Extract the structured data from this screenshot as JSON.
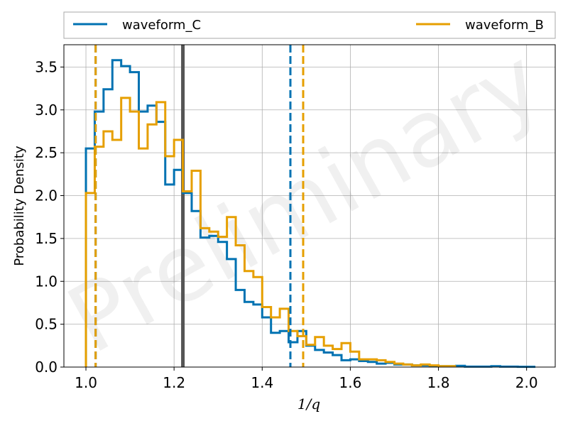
{
  "chart_data": {
    "type": "histogram",
    "xlabel": "1/q",
    "ylabel": "Probability Density",
    "xlim": [
      0.95,
      2.065
    ],
    "ylim": [
      0,
      3.76
    ],
    "xticks": [
      1.0,
      1.2,
      1.4,
      1.6,
      1.8,
      2.0
    ],
    "xtick_labels": [
      "1.0",
      "1.2",
      "1.4",
      "1.6",
      "1.8",
      "2.0"
    ],
    "yticks": [
      0.0,
      0.5,
      1.0,
      1.5,
      2.0,
      2.5,
      3.0,
      3.5
    ],
    "ytick_labels": [
      "0.0",
      "0.5",
      "1.0",
      "1.5",
      "2.0",
      "2.5",
      "3.0",
      "3.5"
    ],
    "grid": true,
    "legend_position": "top, above plot",
    "watermark": "Preliminary",
    "reference_line": {
      "x": 1.22,
      "color": "#555555"
    },
    "series": [
      {
        "name": "waveform_C",
        "color": "#0072b2",
        "bin_edges": [
          1.0,
          1.02,
          1.04,
          1.06,
          1.08,
          1.1,
          1.12,
          1.14,
          1.16,
          1.18,
          1.2,
          1.22,
          1.24,
          1.26,
          1.28,
          1.3,
          1.32,
          1.34,
          1.36,
          1.38,
          1.4,
          1.42,
          1.44,
          1.46,
          1.48,
          1.5,
          1.52,
          1.54,
          1.56,
          1.58,
          1.6,
          1.62,
          1.64,
          1.66,
          1.68,
          1.7,
          1.72,
          1.74,
          1.76,
          1.78,
          1.8,
          1.82,
          1.84,
          1.86,
          1.88,
          1.9,
          1.92,
          1.94,
          1.96,
          1.98,
          2.0,
          2.02
        ],
        "values": [
          2.55,
          2.98,
          3.24,
          3.58,
          3.51,
          3.44,
          2.98,
          3.05,
          2.86,
          2.13,
          2.3,
          2.03,
          1.82,
          1.51,
          1.53,
          1.46,
          1.26,
          0.9,
          0.76,
          0.73,
          0.58,
          0.4,
          0.42,
          0.29,
          0.42,
          0.25,
          0.2,
          0.17,
          0.14,
          0.08,
          0.09,
          0.07,
          0.06,
          0.04,
          0.05,
          0.03,
          0.03,
          0.02,
          0.02,
          0.015,
          0.01,
          0.01,
          0.015,
          0.005,
          0.005,
          0.005,
          0.01,
          0.005,
          0.005,
          0.003,
          0.003
        ],
        "vlines": [
          1.022,
          1.464
        ]
      },
      {
        "name": "waveform_B",
        "color": "#e69f00",
        "bin_edges": [
          1.0,
          1.02,
          1.04,
          1.06,
          1.08,
          1.1,
          1.12,
          1.14,
          1.16,
          1.18,
          1.2,
          1.22,
          1.24,
          1.26,
          1.28,
          1.3,
          1.32,
          1.34,
          1.36,
          1.38,
          1.4,
          1.42,
          1.44,
          1.46,
          1.48,
          1.5,
          1.52,
          1.54,
          1.56,
          1.58,
          1.6,
          1.62,
          1.64,
          1.66,
          1.68,
          1.7,
          1.72,
          1.74,
          1.76,
          1.78,
          1.8,
          1.82,
          1.84
        ],
        "values": [
          2.03,
          2.57,
          2.75,
          2.65,
          3.14,
          2.98,
          2.55,
          2.83,
          3.09,
          2.46,
          2.65,
          2.05,
          2.29,
          1.62,
          1.58,
          1.52,
          1.75,
          1.42,
          1.12,
          1.05,
          0.7,
          0.58,
          0.68,
          0.42,
          0.36,
          0.26,
          0.35,
          0.25,
          0.21,
          0.28,
          0.18,
          0.09,
          0.09,
          0.08,
          0.06,
          0.04,
          0.03,
          0.02,
          0.03,
          0.02,
          0.01,
          0.01
        ],
        "vlines": [
          1.022,
          1.493
        ]
      }
    ]
  }
}
